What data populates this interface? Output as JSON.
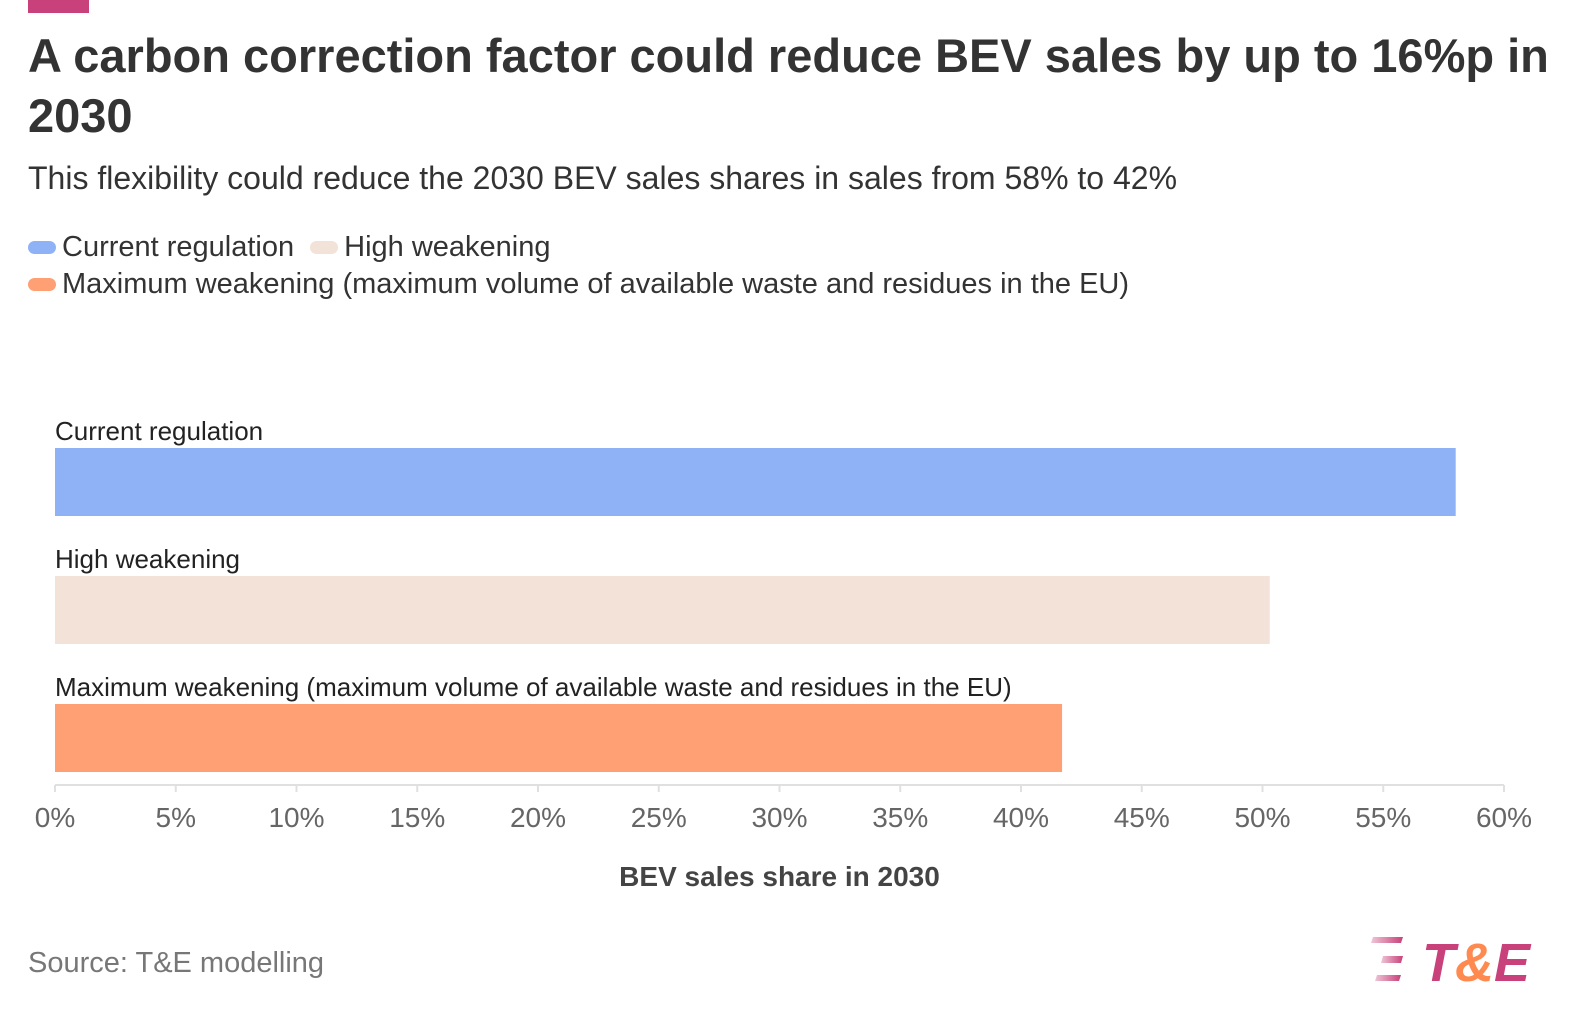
{
  "title": "A carbon correction factor could reduce BEV sales by up to 16%p in 2030",
  "subtitle": "This flexibility could reduce the 2030 BEV sales shares in sales from 58% to 42%",
  "source": "Source: T&E modelling",
  "logo_text": "T&E",
  "colors": {
    "accent": "#c8417a",
    "logo_amp": "#ff8a50"
  },
  "chart_data": {
    "type": "bar",
    "orientation": "horizontal",
    "categories": [
      "Current regulation",
      "High weakening",
      "Maximum weakening (maximum volume of available waste and residues in the EU)"
    ],
    "values": [
      58,
      50.3,
      41.7
    ],
    "colors": [
      "#8fb2f7",
      "#f2e2d7",
      "#ff9f74"
    ],
    "legend": [
      "Current regulation",
      "High weakening",
      "Maximum weakening (maximum volume of available waste and residues in the EU)"
    ],
    "legend_position": "top-left",
    "xlabel": "BEV sales share in 2030",
    "xlim": [
      0,
      60
    ],
    "xticks": [
      0,
      5,
      10,
      15,
      20,
      25,
      30,
      35,
      40,
      45,
      50,
      55,
      60
    ],
    "xtick_labels": [
      "0%",
      "5%",
      "10%",
      "15%",
      "20%",
      "25%",
      "30%",
      "35%",
      "40%",
      "45%",
      "50%",
      "55%",
      "60%"
    ],
    "grid": false
  }
}
